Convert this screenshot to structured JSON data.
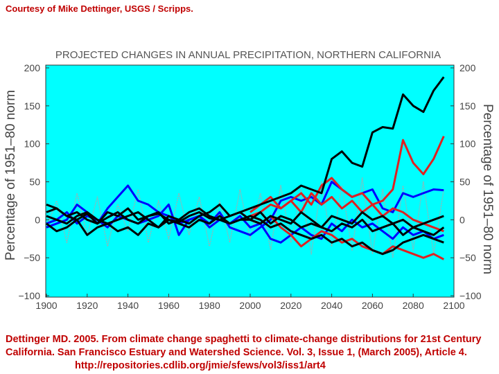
{
  "credit": "Courtesy of Mike Dettinger, USGS / Scripps.",
  "citation": {
    "text": "Dettinger MD. 2005. From climate change spaghetti to climate-change distributions for 21st Century California. San Francisco Estuary and Watershed Science. Vol. 3, Issue 1, (March 2005), Article 4.",
    "url": "http://repositories.cdlib.org/jmie/sfews/vol3/iss1/art4"
  },
  "chart_data": {
    "type": "line",
    "title": "PROJECTED CHANGES IN ANNUAL PRECIPITATION, NORTHERN CALIFORNIA",
    "xlabel": "",
    "ylabel": "Percentage of 1951–80 norm",
    "ylabel_right": "Percentage of 1951–80 norm",
    "xlim": [
      1900,
      2100
    ],
    "ylim": [
      -100,
      200
    ],
    "xticks": [
      "1900",
      "1920",
      "1940",
      "1960",
      "1980",
      "2000",
      "2020",
      "2040",
      "2060",
      "2080",
      "2100"
    ],
    "yticks": [
      "200",
      "150",
      "100",
      "50",
      "0",
      "−50",
      "−100"
    ],
    "grid": false,
    "background": "#00ffff",
    "x": [
      1900,
      1905,
      1910,
      1915,
      1920,
      1925,
      1930,
      1935,
      1940,
      1945,
      1950,
      1955,
      1960,
      1965,
      1970,
      1975,
      1980,
      1985,
      1990,
      1995,
      2000,
      2005,
      2010,
      2015,
      2020,
      2025,
      2030,
      2035,
      2040,
      2045,
      2050,
      2055,
      2060,
      2065,
      2070,
      2075,
      2080,
      2085,
      2090,
      2095
    ],
    "series": [
      {
        "color": "#aaaaaa",
        "style": "dotted",
        "values": [
          -10,
          25,
          -30,
          35,
          -20,
          30,
          -35,
          20,
          -15,
          40,
          -30,
          25,
          -25,
          35,
          -20,
          30,
          -35,
          25,
          -30,
          40,
          -25,
          35,
          -40,
          45,
          -30,
          40,
          -45,
          50,
          -35,
          45,
          -40,
          55,
          -45,
          40,
          -50,
          45,
          -40,
          50,
          -45,
          40
        ]
      },
      {
        "color": "#0000ff",
        "values": [
          -10,
          -5,
          0,
          20,
          10,
          -5,
          15,
          30,
          45,
          25,
          20,
          10,
          5,
          -5,
          0,
          5,
          -5,
          10,
          -10,
          -15,
          -20,
          -10,
          0,
          25,
          30,
          25,
          30,
          20,
          50,
          40,
          30,
          35,
          40,
          15,
          10,
          35,
          30,
          35,
          40,
          39
        ]
      },
      {
        "color": "#0000ff",
        "values": [
          -5,
          0,
          10,
          -5,
          5,
          0,
          -10,
          5,
          0,
          -5,
          0,
          5,
          20,
          -20,
          0,
          5,
          -10,
          0,
          -5,
          5,
          -10,
          -5,
          -25,
          -30,
          -20,
          -10,
          -20,
          -25,
          -5,
          -15,
          0,
          -10,
          -5,
          -15,
          -25,
          -10,
          -20,
          -15,
          -25,
          -20
        ]
      },
      {
        "color": "#e02020",
        "values": [
          null,
          null,
          null,
          null,
          null,
          null,
          null,
          null,
          null,
          null,
          null,
          null,
          null,
          null,
          null,
          null,
          null,
          null,
          null,
          null,
          5,
          10,
          20,
          15,
          25,
          35,
          20,
          45,
          55,
          40,
          30,
          35,
          20,
          25,
          40,
          105,
          75,
          60,
          80,
          110
        ]
      },
      {
        "color": "#e02020",
        "values": [
          null,
          null,
          null,
          null,
          null,
          null,
          null,
          null,
          null,
          null,
          null,
          null,
          null,
          null,
          null,
          null,
          null,
          null,
          null,
          null,
          0,
          -5,
          5,
          -10,
          -20,
          -35,
          -25,
          -15,
          -20,
          -30,
          -25,
          -35,
          -40,
          -45,
          -35,
          -40,
          -45,
          -50,
          -45,
          -52
        ]
      },
      {
        "color": "#e02020",
        "values": [
          null,
          null,
          null,
          null,
          null,
          null,
          null,
          null,
          null,
          null,
          null,
          null,
          null,
          null,
          null,
          null,
          null,
          null,
          null,
          null,
          10,
          20,
          30,
          15,
          25,
          10,
          35,
          20,
          30,
          15,
          25,
          10,
          20,
          5,
          15,
          10,
          0,
          -5,
          -10,
          -15
        ]
      },
      {
        "color": "#000000",
        "values": [
          10,
          15,
          5,
          0,
          8,
          -5,
          3,
          10,
          0,
          -5,
          5,
          8,
          0,
          -3,
          5,
          10,
          2,
          0,
          5,
          10,
          15,
          20,
          25,
          30,
          35,
          45,
          40,
          35,
          80,
          90,
          75,
          70,
          115,
          122,
          120,
          165,
          150,
          142,
          170,
          188
        ]
      },
      {
        "color": "#000000",
        "values": [
          20,
          15,
          5,
          10,
          0,
          -5,
          10,
          5,
          15,
          0,
          5,
          10,
          -5,
          0,
          10,
          15,
          5,
          0,
          -5,
          0,
          5,
          0,
          -10,
          -5,
          -15,
          -20,
          -25,
          -20,
          -30,
          -25,
          -35,
          -30,
          -40,
          -45,
          -40,
          -30,
          -25,
          -20,
          -25,
          -30
        ]
      },
      {
        "color": "#000000",
        "values": [
          -5,
          -15,
          -10,
          0,
          -20,
          -10,
          -5,
          -15,
          -10,
          -20,
          -5,
          -10,
          0,
          -5,
          -10,
          0,
          -5,
          5,
          -5,
          0,
          0,
          -5,
          5,
          0,
          -5,
          10,
          0,
          -10,
          5,
          0,
          -5,
          10,
          0,
          5,
          -5,
          0,
          -10,
          -5,
          0,
          5
        ]
      },
      {
        "color": "#000000",
        "values": [
          5,
          0,
          -5,
          5,
          10,
          0,
          -5,
          0,
          5,
          10,
          0,
          -10,
          5,
          0,
          -5,
          5,
          10,
          20,
          5,
          10,
          0,
          10,
          -5,
          5,
          0,
          -10,
          -5,
          -10,
          -15,
          -5,
          -10,
          0,
          -15,
          -10,
          -5,
          -20,
          -10,
          -15,
          -20,
          -10
        ]
      }
    ]
  }
}
